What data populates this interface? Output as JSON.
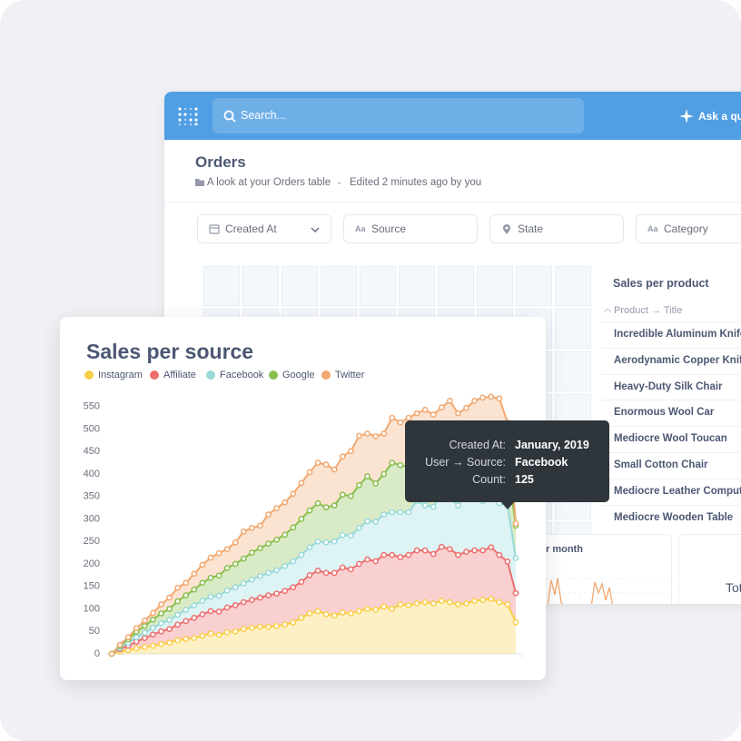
{
  "app": {
    "search": "Search...",
    "ask": "Ask a que",
    "title": "Orders",
    "description": "A look at your Orders table",
    "separator": "•",
    "edited": "Edited 2 minutes ago by you",
    "type_icon": "Aa",
    "filters": [
      "Created At",
      "Source",
      "State",
      "Category"
    ],
    "table": {
      "title": "Sales per product",
      "column": "Product → Title",
      "rows": [
        "Incredible Aluminum Knife",
        "Aerodynamic Copper Knife",
        "Heavy-Duty Silk Chair",
        "Enormous Wool Car",
        "Mediocre Wool Toucan",
        "Small Cotton Chair",
        "Mediocre Leather Compute",
        "Mediocre Wooden Table"
      ]
    },
    "cards": [
      "r month",
      "Tot"
    ]
  },
  "chart_data": {
    "type": "area",
    "stacked": true,
    "title": "Sales per source",
    "ylim": [
      0,
      600
    ],
    "yticks": [
      0,
      50,
      100,
      150,
      200,
      250,
      300,
      350,
      400,
      450,
      500,
      550
    ],
    "series": [
      {
        "name": "Instagram",
        "color": "#f9cf48",
        "values": [
          0,
          5,
          8,
          12,
          15,
          18,
          22,
          25,
          30,
          33,
          35,
          40,
          45,
          42,
          48,
          50,
          55,
          58,
          60,
          60,
          62,
          65,
          70,
          80,
          90,
          95,
          88,
          85,
          92,
          90,
          95,
          100,
          98,
          105,
          100,
          110,
          108,
          112,
          115,
          112,
          118,
          115,
          110,
          112,
          118,
          120,
          122,
          115,
          110,
          70
        ]
      },
      {
        "name": "Affiliate",
        "color": "#ed6e6e",
        "values": [
          0,
          5,
          10,
          15,
          20,
          25,
          28,
          30,
          35,
          40,
          45,
          48,
          50,
          52,
          55,
          58,
          60,
          62,
          65,
          70,
          72,
          75,
          78,
          80,
          85,
          90,
          92,
          95,
          100,
          98,
          105,
          110,
          108,
          115,
          120,
          105,
          112,
          118,
          115,
          110,
          120,
          118,
          110,
          115,
          112,
          110,
          115,
          105,
          95,
          65
        ]
      },
      {
        "name": "Facebook",
        "color": "#98d9d9",
        "values": [
          0,
          3,
          6,
          10,
          12,
          15,
          18,
          20,
          22,
          25,
          28,
          30,
          32,
          35,
          38,
          40,
          42,
          45,
          48,
          50,
          52,
          55,
          58,
          60,
          62,
          65,
          68,
          70,
          72,
          75,
          80,
          85,
          88,
          90,
          95,
          100,
          95,
          110,
          100,
          105,
          120,
          115,
          110,
          125,
          118,
          110,
          120,
          115,
          125,
          78
        ]
      },
      {
        "name": "Google",
        "color": "#88bf4d",
        "values": [
          0,
          4,
          8,
          12,
          15,
          18,
          22,
          25,
          30,
          32,
          35,
          40,
          42,
          45,
          50,
          52,
          55,
          60,
          62,
          65,
          68,
          70,
          75,
          80,
          82,
          85,
          78,
          80,
          90,
          88,
          95,
          100,
          85,
          90,
          110,
          105,
          100,
          95,
          108,
          115,
          110,
          120,
          100,
          95,
          105,
          110,
          100,
          108,
          90,
          72
        ]
      },
      {
        "name": "Twitter",
        "color": "#f2a86f",
        "values": [
          0,
          3,
          5,
          8,
          12,
          15,
          20,
          25,
          30,
          28,
          35,
          40,
          45,
          50,
          42,
          48,
          60,
          55,
          50,
          65,
          70,
          72,
          75,
          80,
          85,
          90,
          95,
          80,
          85,
          100,
          110,
          95,
          105,
          90,
          100,
          95,
          110,
          100,
          105,
          90,
          80,
          95,
          105,
          100,
          110,
          120,
          115,
          125,
          95,
          5
        ]
      }
    ],
    "tooltip": {
      "rows": [
        {
          "label": "Created At:",
          "value": "January, 2019"
        },
        {
          "label": "User → Source:",
          "value": "Facebook"
        },
        {
          "label": "Count:",
          "value": 125
        }
      ]
    }
  }
}
